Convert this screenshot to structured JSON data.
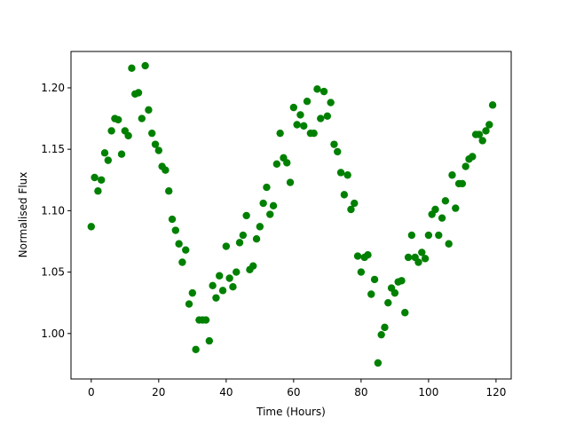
{
  "chart_data": {
    "type": "scatter",
    "x_label": "Time (Hours)",
    "y_label": "Normalised Flux",
    "xlim": [
      -6.0,
      124.5
    ],
    "ylim": [
      0.963,
      1.2296
    ],
    "xticks": [
      0,
      20,
      40,
      60,
      80,
      100,
      120
    ],
    "yticks": [
      {
        "value": 1.0,
        "label": "1.00"
      },
      1.05,
      {
        "value": 1.1,
        "label": "1.10"
      },
      1.15,
      {
        "value": 1.2,
        "label": "1.20"
      }
    ],
    "series": [
      {
        "color": "#008000",
        "x": [
          0,
          1,
          2,
          3,
          4,
          5,
          6,
          7,
          8,
          9,
          10,
          11,
          12,
          13,
          14,
          15,
          16,
          17,
          18,
          19,
          20,
          21,
          22,
          23,
          24,
          25,
          26,
          27,
          28,
          29,
          30,
          31,
          32,
          33,
          34,
          35,
          36,
          37,
          38,
          39,
          40,
          41,
          42,
          43,
          44,
          45,
          46,
          47,
          48,
          49,
          50,
          51,
          52,
          53,
          54,
          55,
          56,
          57,
          58,
          59,
          60,
          61,
          62,
          63,
          64,
          65,
          66,
          67,
          68,
          69,
          70,
          71,
          72,
          73,
          74,
          75,
          76,
          77,
          78,
          79,
          80,
          81,
          82,
          83,
          84,
          85,
          86,
          87,
          88,
          89,
          90,
          91,
          92,
          93,
          94,
          95,
          96,
          97,
          98,
          99,
          100,
          101,
          102,
          103,
          104,
          105,
          106,
          107,
          108,
          109,
          110,
          111,
          112,
          113,
          114,
          115,
          116,
          117,
          118,
          119
        ],
        "values": [
          1.087,
          1.127,
          1.116,
          1.125,
          1.147,
          1.141,
          1.165,
          1.175,
          1.174,
          1.146,
          1.165,
          1.161,
          1.216,
          1.195,
          1.196,
          1.175,
          1.218,
          1.182,
          1.163,
          1.154,
          1.149,
          1.136,
          1.133,
          1.116,
          1.093,
          1.084,
          1.073,
          1.058,
          1.068,
          1.024,
          1.033,
          0.987,
          1.011,
          1.011,
          1.011,
          0.994,
          1.039,
          1.029,
          1.047,
          1.035,
          1.071,
          1.045,
          1.038,
          1.05,
          1.074,
          1.08,
          1.096,
          1.052,
          1.055,
          1.077,
          1.087,
          1.106,
          1.119,
          1.097,
          1.104,
          1.138,
          1.163,
          1.143,
          1.139,
          1.123,
          1.184,
          1.17,
          1.178,
          1.169,
          1.189,
          1.163,
          1.163,
          1.199,
          1.175,
          1.197,
          1.177,
          1.188,
          1.154,
          1.148,
          1.131,
          1.113,
          1.129,
          1.101,
          1.106,
          1.063,
          1.05,
          1.062,
          1.064,
          1.032,
          1.044,
          0.976,
          0.999,
          1.005,
          1.025,
          1.037,
          1.033,
          1.042,
          1.043,
          1.017,
          1.062,
          1.08,
          1.062,
          1.058,
          1.066,
          1.061,
          1.08,
          1.097,
          1.101,
          1.08,
          1.094,
          1.108,
          1.073,
          1.129,
          1.102,
          1.122,
          1.122,
          1.136,
          1.142,
          1.144,
          1.162,
          1.162,
          1.157,
          1.165,
          1.17,
          1.186
        ]
      }
    ]
  }
}
